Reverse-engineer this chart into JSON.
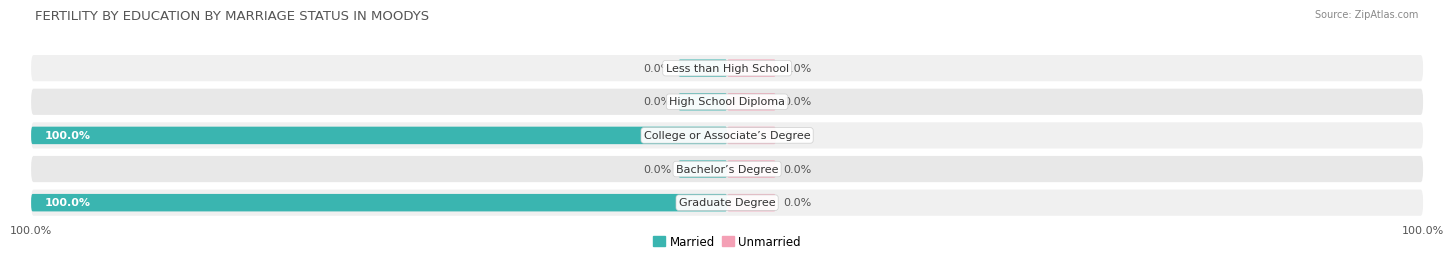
{
  "title": "FERTILITY BY EDUCATION BY MARRIAGE STATUS IN MOODYS",
  "source": "Source: ZipAtlas.com",
  "categories": [
    "Less than High School",
    "High School Diploma",
    "College or Associate’s Degree",
    "Bachelor’s Degree",
    "Graduate Degree"
  ],
  "married_values": [
    0.0,
    0.0,
    100.0,
    0.0,
    100.0
  ],
  "unmarried_values": [
    0.0,
    0.0,
    0.0,
    0.0,
    0.0
  ],
  "married_color": "#3ab5b0",
  "unmarried_color": "#f4a0b5",
  "row_bg_even": "#f0f0f0",
  "row_bg_odd": "#e8e8e8",
  "title_fontsize": 9.5,
  "label_fontsize": 8,
  "tick_fontsize": 8,
  "legend_fontsize": 8.5,
  "background_color": "#ffffff",
  "source_fontsize": 7,
  "bottom_tick_left": "100.0%",
  "bottom_tick_right": "100.0%"
}
